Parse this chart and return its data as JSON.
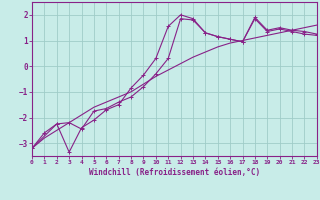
{
  "xlabel": "Windchill (Refroidissement éolien,°C)",
  "background_color": "#c8ece8",
  "grid_color": "#a0ccc8",
  "line_color": "#882288",
  "xlim": [
    0,
    23
  ],
  "ylim": [
    -3.5,
    2.5
  ],
  "xticks": [
    0,
    1,
    2,
    3,
    4,
    5,
    6,
    7,
    8,
    9,
    10,
    11,
    12,
    13,
    14,
    15,
    16,
    17,
    18,
    19,
    20,
    21,
    22,
    23
  ],
  "yticks": [
    -3,
    -2,
    -1,
    0,
    1,
    2
  ],
  "line1_x": [
    0,
    1,
    2,
    3,
    4,
    5,
    6,
    7,
    8,
    9,
    10,
    11,
    12,
    13,
    14,
    15,
    16,
    17,
    18,
    19,
    20,
    21,
    22,
    23
  ],
  "line1_y": [
    -3.2,
    -2.8,
    -2.5,
    -2.2,
    -1.9,
    -1.6,
    -1.4,
    -1.2,
    -1.0,
    -0.7,
    -0.4,
    -0.15,
    0.1,
    0.35,
    0.55,
    0.75,
    0.9,
    1.0,
    1.1,
    1.2,
    1.3,
    1.4,
    1.5,
    1.6
  ],
  "line2_x": [
    0,
    1,
    2,
    3,
    4,
    5,
    6,
    7,
    8,
    9,
    10,
    11,
    12,
    13,
    14,
    15,
    16,
    17,
    18,
    19,
    20,
    21,
    22,
    23
  ],
  "line2_y": [
    -3.2,
    -2.6,
    -2.25,
    -3.35,
    -2.4,
    -2.1,
    -1.7,
    -1.5,
    -0.85,
    -0.35,
    0.3,
    1.55,
    2.0,
    1.85,
    1.3,
    1.15,
    1.05,
    0.95,
    1.9,
    1.4,
    1.5,
    1.4,
    1.35,
    1.25
  ],
  "line3_x": [
    0,
    2,
    3,
    4,
    5,
    6,
    7,
    8,
    9,
    10,
    11,
    12,
    13,
    14,
    15,
    16,
    17,
    18,
    19,
    20,
    21,
    22,
    23
  ],
  "line3_y": [
    -3.2,
    -2.25,
    -2.2,
    -2.45,
    -1.75,
    -1.65,
    -1.4,
    -1.2,
    -0.8,
    -0.3,
    0.3,
    1.85,
    1.8,
    1.3,
    1.15,
    1.05,
    0.95,
    1.85,
    1.35,
    1.45,
    1.35,
    1.25,
    1.2
  ]
}
